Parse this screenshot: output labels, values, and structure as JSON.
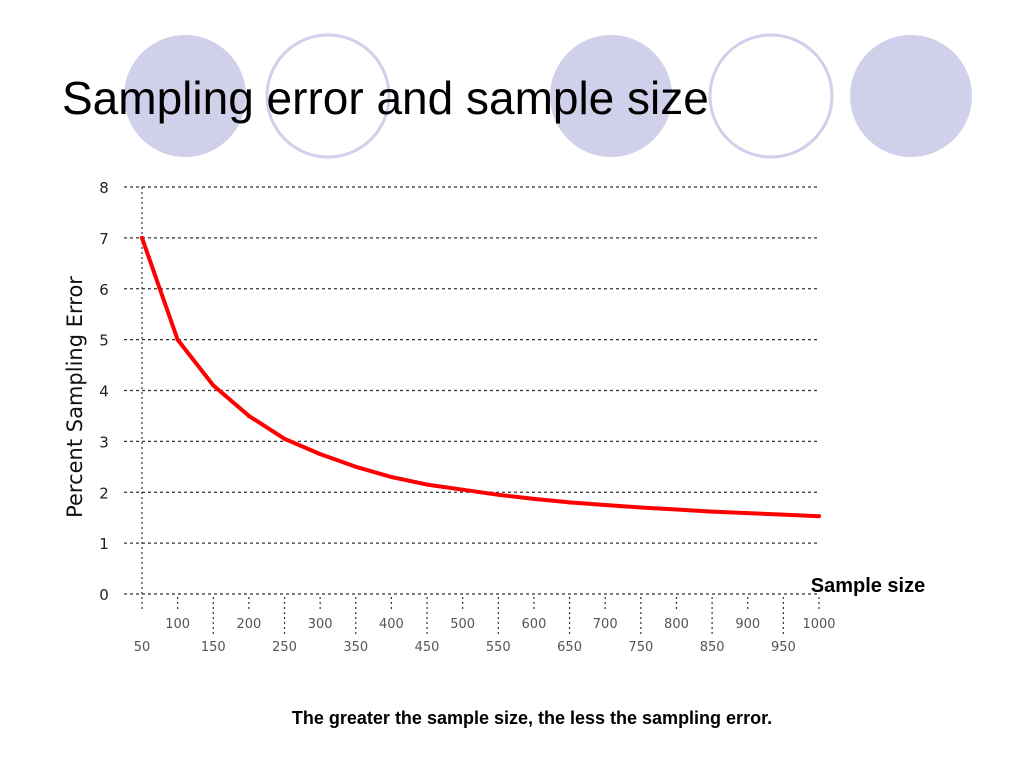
{
  "slide": {
    "title": "Sampling error and sample size",
    "caption": "The greater the sample size, the less the sampling error."
  },
  "decoration": {
    "circle_fill": "#d0d0ea",
    "circle_stroke": "#d0d0ea"
  },
  "colors": {
    "curve": "#ff0000",
    "grid": "#333333",
    "axis_text": "#222222"
  },
  "chart_data": {
    "type": "line",
    "title": "",
    "xlabel": "Sample size",
    "ylabel": "Percent Sampling Error",
    "xlim": [
      50,
      1000
    ],
    "ylim": [
      0,
      8
    ],
    "x_ticks_upper": [
      "100",
      "200",
      "300",
      "400",
      "500",
      "600",
      "700",
      "800",
      "900",
      "1000"
    ],
    "x_ticks_lower": [
      "50",
      "150",
      "250",
      "350",
      "450",
      "550",
      "650",
      "750",
      "850",
      "950"
    ],
    "y_ticks": [
      "0",
      "1",
      "2",
      "3",
      "4",
      "5",
      "6",
      "7",
      "8"
    ],
    "grid": true,
    "series": [
      {
        "x": [
          50,
          100,
          150,
          200,
          250,
          300,
          350,
          400,
          450,
          500,
          550,
          600,
          650,
          700,
          750,
          800,
          850,
          900,
          950,
          1000
        ],
        "values": [
          7.0,
          5.0,
          4.1,
          3.5,
          3.05,
          2.75,
          2.5,
          2.3,
          2.15,
          2.05,
          1.95,
          1.87,
          1.8,
          1.75,
          1.7,
          1.66,
          1.62,
          1.59,
          1.56,
          1.53
        ]
      }
    ]
  }
}
